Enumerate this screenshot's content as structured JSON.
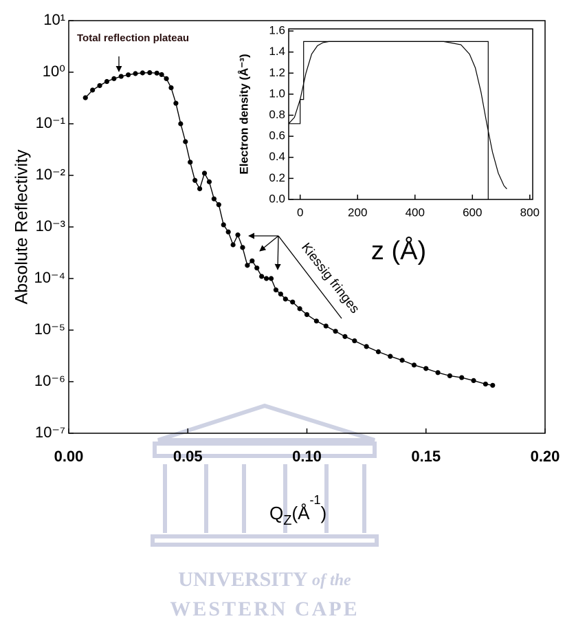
{
  "chart_data": [
    {
      "type": "line",
      "markers": true,
      "log_y": true,
      "color": "#000000",
      "ylabel": "Absolute Reflectivity",
      "xlabel_parts": [
        "Q",
        "Z",
        "(Å",
        "-1",
        ")"
      ],
      "annotations": [
        "Total reflection plateau",
        "Kiessig fringes"
      ],
      "watermark": [
        "UNIVERSITY",
        "of the",
        "WESTERN CAPE"
      ],
      "xlim": [
        0,
        0.2
      ],
      "xticks": [
        {
          "value": 0,
          "label": "0.00"
        },
        0.05,
        {
          "value": 0.1,
          "label": "0.10"
        },
        {
          "value": 0.15,
          "label": "0.15"
        },
        {
          "value": 0.2,
          "label": "0.20"
        }
      ],
      "ylim": [
        1e-07,
        10
      ],
      "yticks": [
        {
          "value": 1e-07,
          "label": "10⁻⁷"
        },
        {
          "value": 1e-06,
          "label": "10⁻⁶"
        },
        {
          "value": 1e-05,
          "label": "10⁻⁵"
        },
        {
          "value": 0.0001,
          "label": "10⁻⁴"
        },
        {
          "value": 0.001,
          "label": "10⁻³"
        },
        {
          "value": 0.01,
          "label": "10⁻²"
        },
        {
          "value": 0.1,
          "label": "10⁻¹"
        },
        {
          "value": 1,
          "label": "10⁰"
        },
        {
          "value": 10,
          "label": "10¹"
        }
      ],
      "x": [
        0.007,
        0.01,
        0.013,
        0.016,
        0.019,
        0.022,
        0.025,
        0.028,
        0.031,
        0.034,
        0.037,
        0.039,
        0.041,
        0.043,
        0.045,
        0.047,
        0.049,
        0.051,
        0.053,
        0.055,
        0.057,
        0.059,
        0.061,
        0.063,
        0.065,
        0.067,
        0.069,
        0.071,
        0.073,
        0.075,
        0.077,
        0.079,
        0.081,
        0.083,
        0.085,
        0.087,
        0.089,
        0.091,
        0.094,
        0.097,
        0.1,
        0.104,
        0.108,
        0.112,
        0.116,
        0.12,
        0.125,
        0.13,
        0.135,
        0.14,
        0.145,
        0.15,
        0.155,
        0.16,
        0.165,
        0.17,
        0.175,
        0.178
      ],
      "values": [
        0.32,
        0.45,
        0.55,
        0.66,
        0.75,
        0.83,
        0.89,
        0.94,
        0.97,
        0.98,
        0.96,
        0.9,
        0.75,
        0.5,
        0.25,
        0.1,
        0.045,
        0.018,
        0.008,
        0.0055,
        0.011,
        0.0075,
        0.0035,
        0.0027,
        0.0011,
        0.0008,
        0.00045,
        0.0007,
        0.0004,
        0.00018,
        0.00022,
        0.00016,
        0.00011,
        0.0001,
        0.0001,
        6e-05,
        5e-05,
        4e-05,
        3.5e-05,
        2.6e-05,
        2e-05,
        1.5e-05,
        1.2e-05,
        9.5e-06,
        7.5e-06,
        6.2e-06,
        4.8e-06,
        3.8e-06,
        3.1e-06,
        2.6e-06,
        2.1e-06,
        1.8e-06,
        1.5e-06,
        1.3e-06,
        1.2e-06,
        1.05e-06,
        9e-07,
        8.5e-07
      ]
    },
    {
      "type": "line",
      "color": "#000000",
      "ylabel": "Electron density (Å⁻³)",
      "xlabel": "z (Å)",
      "xlim": [
        -40,
        810
      ],
      "ylim": [
        0,
        1.62
      ],
      "xticks": [
        0,
        200,
        400,
        600,
        800
      ],
      "yticks": [
        {
          "value": 0,
          "label": "0.0"
        },
        0.2,
        0.4,
        0.6,
        0.8,
        {
          "value": 1,
          "label": "1.0"
        },
        1.2,
        1.4,
        1.6
      ],
      "series": [
        {
          "x": [
            -40,
            0,
            0,
            12,
            12,
            655,
            655
          ],
          "values": [
            0.72,
            0.72,
            0.95,
            0.95,
            1.5,
            1.5,
            0
          ]
        },
        {
          "x": [
            -40,
            -20,
            0,
            20,
            40,
            60,
            80,
            100,
            300,
            500,
            560,
            590,
            610,
            630,
            650,
            670,
            690,
            710,
            720
          ],
          "values": [
            0.72,
            0.78,
            0.95,
            1.2,
            1.38,
            1.46,
            1.49,
            1.5,
            1.5,
            1.5,
            1.47,
            1.38,
            1.25,
            1.02,
            0.72,
            0.45,
            0.25,
            0.13,
            0.1
          ]
        }
      ]
    }
  ]
}
